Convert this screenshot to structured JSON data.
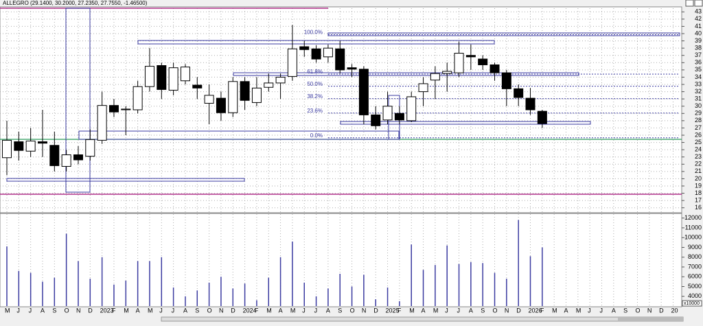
{
  "chart_data": [
    {
      "type": "candlestick",
      "title": "ALLEGRO (29.1400, 30.2000, 27.2350, 27.7550, -1.46500)",
      "categories": [
        "M",
        "J",
        "J",
        "A",
        "S",
        "O",
        "N",
        "D",
        "2023",
        "F",
        "M",
        "A",
        "M",
        "J",
        "J",
        "A",
        "S",
        "O",
        "N",
        "D",
        "2024",
        "F",
        "M",
        "A",
        "M",
        "J",
        "J",
        "A",
        "S",
        "O",
        "N",
        "D",
        "2025",
        "F",
        "M",
        "A",
        "M",
        "J",
        "J",
        "A",
        "S",
        "O",
        "N",
        "D",
        "2026",
        "F",
        "M",
        "A",
        "M",
        "J",
        "J",
        "A",
        "S",
        "O",
        "N",
        "D",
        "20"
      ],
      "open": [
        22.9,
        25.1,
        23.8,
        25.1,
        24.6,
        21.7,
        23.3,
        23.1,
        25.3,
        30.1,
        29.5,
        29.5,
        32.7,
        35.6,
        32.2,
        33.5,
        32.9,
        30.4,
        31.1,
        29.1,
        33.4,
        30.5,
        32.6,
        33.2,
        34.1,
        38.2,
        37.9,
        36.8,
        37.9,
        35.3,
        35.1,
        28.8,
        28.1,
        29,
        28,
        32,
        33.6,
        34.5,
        34.6,
        37,
        36.5,
        35.7,
        34.6,
        32.4,
        31.1,
        29.3,
        null,
        null,
        null,
        null,
        null,
        null,
        null,
        null,
        null,
        null,
        null
      ],
      "high": [
        28,
        26.5,
        27,
        29.5,
        26.5,
        24,
        24.5,
        26.8,
        32,
        31,
        30,
        33.5,
        38,
        36,
        36,
        35.8,
        34,
        33,
        32,
        34,
        34,
        34,
        34.5,
        34.5,
        41.2,
        39,
        38.4,
        38.5,
        39,
        35.8,
        35.5,
        30,
        32,
        30,
        32,
        34,
        35.5,
        36,
        38.9,
        38.5,
        37,
        36,
        35,
        33,
        32.5,
        29.5,
        null,
        null,
        null,
        null,
        null,
        null,
        null,
        null,
        null,
        null,
        null
      ],
      "low": [
        20.5,
        22.5,
        23,
        23,
        21,
        21,
        22,
        22.5,
        24.8,
        28.5,
        26,
        29,
        32,
        31,
        31.5,
        33,
        31,
        27.5,
        28,
        28.5,
        29.5,
        30,
        32,
        31,
        33.5,
        36.8,
        36,
        36,
        34.5,
        34,
        27.5,
        26.8,
        27.5,
        27.5,
        27.8,
        30,
        31,
        32,
        34,
        35,
        35,
        33.5,
        30,
        30,
        28.8,
        27,
        null,
        null,
        null,
        null,
        null,
        null,
        null,
        null,
        null,
        null,
        null
      ],
      "close": [
        25.3,
        23.9,
        25.2,
        24.9,
        21.8,
        23.3,
        22.6,
        25.4,
        30.1,
        29.2,
        29.6,
        32.7,
        35.5,
        32.3,
        35.3,
        35.4,
        32.5,
        31.5,
        29.1,
        33.4,
        30.8,
        32.5,
        33.2,
        34,
        37.9,
        37.8,
        36.5,
        38,
        35,
        35.1,
        28.8,
        27.3,
        30,
        28.1,
        31.3,
        33.1,
        34.5,
        34.8,
        37.3,
        36.8,
        35.7,
        34.6,
        32.4,
        31.2,
        29.5,
        27.6,
        null,
        null,
        null,
        null,
        null,
        null,
        null,
        null,
        null,
        null,
        null
      ],
      "ylim": [
        15.5,
        43.5
      ],
      "yticks": [
        16,
        17,
        18,
        19,
        20,
        21,
        22,
        23,
        24,
        25,
        26,
        27,
        28,
        29,
        30,
        31,
        32,
        33,
        34,
        35,
        36,
        37,
        38,
        39,
        40,
        41,
        42,
        43
      ],
      "fibonacci": [
        {
          "label": "100.0%",
          "value": 39.86
        },
        {
          "label": "61.8%",
          "value": 34.42
        },
        {
          "label": "50.0%",
          "value": 32.75
        },
        {
          "label": "38.2%",
          "value": 31.04
        },
        {
          "label": "23.6%",
          "value": 29.05
        },
        {
          "label": "0.0%",
          "value": 25.64
        }
      ],
      "up_color": "#ffffff",
      "down_color": "#000000",
      "fib_color": "#3a3aa0",
      "grid": true
    },
    {
      "type": "bar",
      "unit_label": "x10000",
      "values": [
        9100,
        6600,
        6400,
        5500,
        5900,
        10400,
        7600,
        5800,
        8000,
        5200,
        5600,
        7600,
        7600,
        8000,
        4900,
        4000,
        4600,
        5400,
        6000,
        4800,
        5300,
        3600,
        5900,
        8000,
        9600,
        5400,
        4000,
        4800,
        6300,
        5000,
        6200,
        3700,
        4900,
        3500,
        9300,
        6700,
        7200,
        9200,
        7300,
        7500,
        7400,
        6400,
        5800,
        11800,
        8100,
        9000,
        null,
        null,
        null,
        null,
        null,
        null,
        null,
        null,
        null,
        null,
        null
      ],
      "ylim": [
        3000,
        12400
      ],
      "yticks": [
        4000,
        5000,
        6000,
        7000,
        8000,
        9000,
        10000,
        11000,
        12000
      ],
      "color": "#3a3aa0"
    }
  ]
}
